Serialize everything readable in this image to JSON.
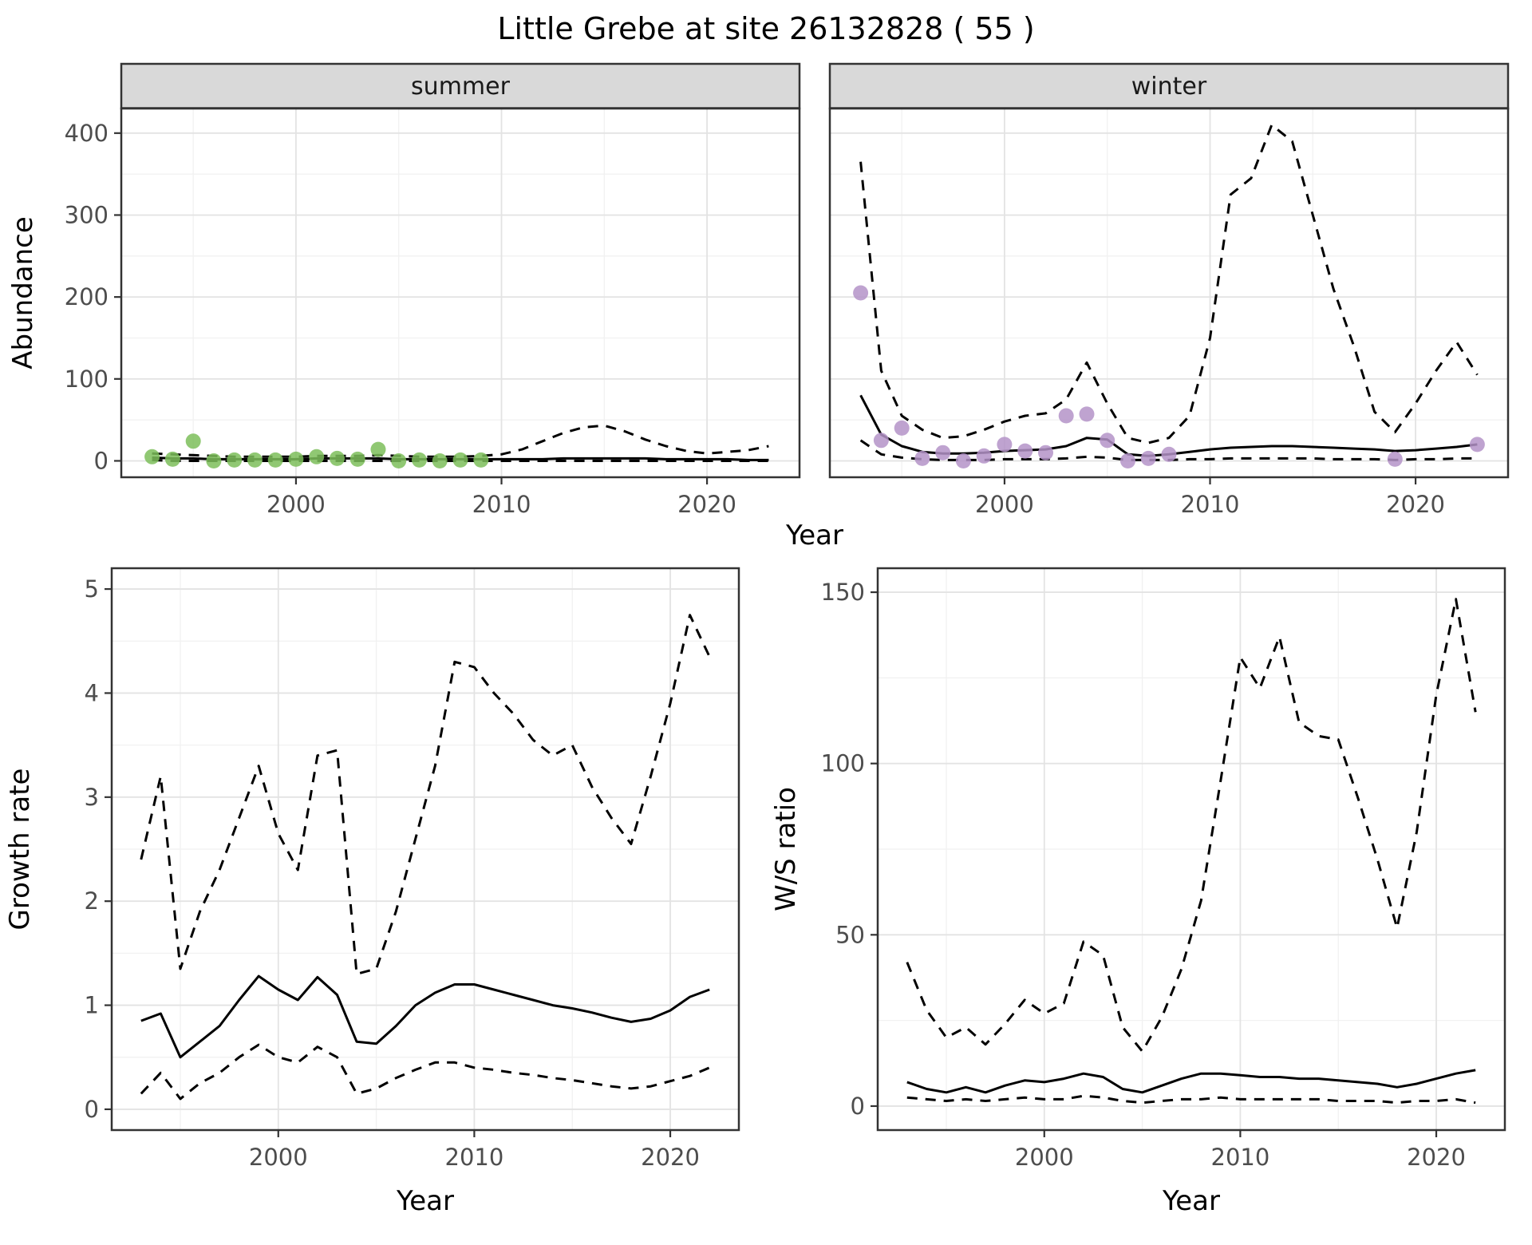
{
  "title": "Little Grebe at site 26132828 ( 55 )",
  "theme": {
    "strip_bg": "#D9D9D9",
    "grid_major": "#E3E3E3",
    "grid_minor": "#F1F1F1",
    "border": "#333333",
    "tick_color": "#4D4D4D",
    "line_color": "#000000",
    "summer_point_color": "#7CBE5B",
    "winter_point_color": "#B493C8"
  },
  "chart_data": [
    {
      "id": "abundance",
      "type": "line",
      "title": "",
      "xlabel": "Year",
      "ylabel": "Abundance",
      "xlim": [
        1991.5,
        2024.5
      ],
      "ylim": [
        -20,
        430
      ],
      "xticks": [
        2000,
        2010,
        2020
      ],
      "xminor": [
        1995,
        2005,
        2015
      ],
      "yticks": [
        0,
        100,
        200,
        300,
        400
      ],
      "yminor": [
        50,
        150,
        250,
        350
      ],
      "grid": true,
      "legend": "none",
      "facets": [
        {
          "label": "summer",
          "point_color": "#7CBE5B",
          "points": {
            "x": [
              1993,
              1994,
              1995,
              1996,
              1997,
              1998,
              1999,
              2000,
              2001,
              2002,
              2003,
              2004,
              2005,
              2006,
              2007,
              2008,
              2009
            ],
            "y": [
              5,
              2,
              24,
              0,
              1,
              1,
              1,
              2,
              5,
              3,
              2,
              14,
              0,
              1,
              0,
              1,
              1
            ]
          },
          "series": [
            {
              "name": "fit",
              "style": "solid",
              "x": [
                1993,
                1994,
                1995,
                1996,
                1997,
                1998,
                1999,
                2000,
                2001,
                2002,
                2003,
                2004,
                2005,
                2006,
                2007,
                2008,
                2009,
                2010,
                2011,
                2012,
                2013,
                2014,
                2015,
                2016,
                2017,
                2018,
                2019,
                2020,
                2021,
                2022,
                2023
              ],
              "y": [
                4,
                3,
                3,
                2,
                2,
                2,
                2,
                2,
                3,
                3,
                3,
                3,
                2,
                2,
                2,
                2,
                2,
                2,
                2,
                2,
                3,
                3,
                3,
                3,
                3,
                2,
                2,
                2,
                2,
                1,
                1
              ]
            },
            {
              "name": "upper-ci",
              "style": "dashed",
              "x": [
                1993,
                1994,
                1995,
                1996,
                1997,
                1998,
                1999,
                2000,
                2001,
                2002,
                2003,
                2004,
                2005,
                2006,
                2007,
                2008,
                2009,
                2010,
                2011,
                2012,
                2013,
                2014,
                2015,
                2016,
                2017,
                2018,
                2019,
                2020,
                2021,
                2022,
                2023
              ],
              "y": [
                9,
                8,
                7,
                6,
                5,
                5,
                5,
                5,
                6,
                6,
                6,
                7,
                6,
                5,
                5,
                5,
                6,
                8,
                14,
                24,
                34,
                41,
                43,
                36,
                26,
                18,
                12,
                9,
                11,
                13,
                18
              ]
            },
            {
              "name": "lower-ci",
              "style": "dashed",
              "x": [
                1993,
                1994,
                1995,
                1996,
                1997,
                1998,
                1999,
                2000,
                2001,
                2002,
                2003,
                2004,
                2005,
                2006,
                2007,
                2008,
                2009,
                2010,
                2011,
                2012,
                2013,
                2014,
                2015,
                2016,
                2017,
                2018,
                2019,
                2020,
                2021,
                2022,
                2023
              ],
              "y": [
                1,
                0,
                0,
                0,
                0,
                0,
                0,
                0,
                0,
                0,
                0,
                0,
                0,
                0,
                0,
                0,
                0,
                0,
                0,
                0,
                0,
                0,
                0,
                0,
                0,
                0,
                0,
                0,
                0,
                0,
                0
              ]
            }
          ]
        },
        {
          "label": "winter",
          "point_color": "#B493C8",
          "points": {
            "x": [
              1993,
              1994,
              1995,
              1996,
              1997,
              1998,
              1999,
              2000,
              2001,
              2002,
              2003,
              2004,
              2005,
              2006,
              2007,
              2008,
              2019,
              2023
            ],
            "y": [
              205,
              25,
              40,
              3,
              10,
              0,
              6,
              20,
              12,
              10,
              55,
              57,
              25,
              0,
              3,
              8,
              2,
              20
            ]
          },
          "series": [
            {
              "name": "fit",
              "style": "solid",
              "x": [
                1993,
                1994,
                1995,
                1996,
                1997,
                1998,
                1999,
                2000,
                2001,
                2002,
                2003,
                2004,
                2005,
                2006,
                2007,
                2008,
                2009,
                2010,
                2011,
                2012,
                2013,
                2014,
                2015,
                2016,
                2017,
                2018,
                2019,
                2020,
                2021,
                2022,
                2023
              ],
              "y": [
                80,
                32,
                18,
                11,
                9,
                9,
                10,
                12,
                13,
                14,
                18,
                28,
                26,
                8,
                6,
                8,
                11,
                14,
                16,
                17,
                18,
                18,
                17,
                16,
                15,
                14,
                12,
                13,
                15,
                17,
                20
              ]
            },
            {
              "name": "upper-ci",
              "style": "dashed",
              "x": [
                1993,
                1994,
                1995,
                1996,
                1997,
                1998,
                1999,
                2000,
                2001,
                2002,
                2003,
                2004,
                2005,
                2006,
                2007,
                2008,
                2009,
                2010,
                2011,
                2012,
                2013,
                2014,
                2015,
                2016,
                2017,
                2018,
                2019,
                2020,
                2021,
                2022,
                2023
              ],
              "y": [
                365,
                110,
                55,
                38,
                28,
                30,
                38,
                48,
                55,
                58,
                75,
                120,
                70,
                28,
                22,
                28,
                55,
                150,
                325,
                345,
                410,
                390,
                300,
                210,
                140,
                60,
                35,
                70,
                110,
                145,
                105
              ]
            },
            {
              "name": "lower-ci",
              "style": "dashed",
              "x": [
                1993,
                1994,
                1995,
                1996,
                1997,
                1998,
                1999,
                2000,
                2001,
                2002,
                2003,
                2004,
                2005,
                2006,
                2007,
                2008,
                2009,
                2010,
                2011,
                2012,
                2013,
                2014,
                2015,
                2016,
                2017,
                2018,
                2019,
                2020,
                2021,
                2022,
                2023
              ],
              "y": [
                25,
                8,
                4,
                2,
                1,
                1,
                1,
                2,
                2,
                2,
                3,
                5,
                4,
                1,
                1,
                1,
                2,
                2,
                3,
                3,
                3,
                3,
                3,
                2,
                2,
                2,
                1,
                2,
                2,
                3,
                3
              ]
            }
          ]
        }
      ]
    },
    {
      "id": "growth-rate",
      "type": "line",
      "title": "",
      "xlabel": "Year",
      "ylabel": "Growth rate",
      "xlim": [
        1991.5,
        2023.5
      ],
      "ylim": [
        -0.2,
        5.2
      ],
      "xticks": [
        2000,
        2010,
        2020
      ],
      "xminor": [
        1995,
        2005,
        2015
      ],
      "yticks": [
        0,
        1,
        2,
        3,
        4,
        5
      ],
      "yminor": [
        0.5,
        1.5,
        2.5,
        3.5,
        4.5
      ],
      "grid": true,
      "legend": "none",
      "series": [
        {
          "name": "fit",
          "style": "solid",
          "x": [
            1993,
            1994,
            1995,
            1996,
            1997,
            1998,
            1999,
            2000,
            2001,
            2002,
            2003,
            2004,
            2005,
            2006,
            2007,
            2008,
            2009,
            2010,
            2011,
            2012,
            2013,
            2014,
            2015,
            2016,
            2017,
            2018,
            2019,
            2020,
            2021,
            2022
          ],
          "y": [
            0.85,
            0.92,
            0.5,
            0.65,
            0.8,
            1.05,
            1.28,
            1.15,
            1.05,
            1.27,
            1.1,
            0.65,
            0.63,
            0.8,
            1.0,
            1.12,
            1.2,
            1.2,
            1.15,
            1.1,
            1.05,
            1.0,
            0.97,
            0.93,
            0.88,
            0.84,
            0.87,
            0.95,
            1.08,
            1.15
          ]
        },
        {
          "name": "upper-ci",
          "style": "dashed",
          "x": [
            1993,
            1994,
            1995,
            1996,
            1997,
            1998,
            1999,
            2000,
            2001,
            2002,
            2003,
            2004,
            2005,
            2006,
            2007,
            2008,
            2009,
            2010,
            2011,
            2012,
            2013,
            2014,
            2015,
            2016,
            2017,
            2018,
            2019,
            2020,
            2021,
            2022
          ],
          "y": [
            2.4,
            3.2,
            1.35,
            1.9,
            2.3,
            2.8,
            3.3,
            2.65,
            2.3,
            3.4,
            3.45,
            1.3,
            1.35,
            1.9,
            2.6,
            3.3,
            4.3,
            4.25,
            4.0,
            3.8,
            3.55,
            3.4,
            3.5,
            3.1,
            2.8,
            2.55,
            3.2,
            3.9,
            4.75,
            4.35
          ]
        },
        {
          "name": "lower-ci",
          "style": "dashed",
          "x": [
            1993,
            1994,
            1995,
            1996,
            1997,
            1998,
            1999,
            2000,
            2001,
            2002,
            2003,
            2004,
            2005,
            2006,
            2007,
            2008,
            2009,
            2010,
            2011,
            2012,
            2013,
            2014,
            2015,
            2016,
            2017,
            2018,
            2019,
            2020,
            2021,
            2022
          ],
          "y": [
            0.15,
            0.35,
            0.1,
            0.25,
            0.35,
            0.5,
            0.62,
            0.5,
            0.45,
            0.6,
            0.5,
            0.15,
            0.2,
            0.3,
            0.38,
            0.45,
            0.45,
            0.4,
            0.38,
            0.35,
            0.33,
            0.3,
            0.28,
            0.25,
            0.22,
            0.2,
            0.22,
            0.27,
            0.32,
            0.4
          ]
        }
      ]
    },
    {
      "id": "ws-ratio",
      "type": "line",
      "title": "",
      "xlabel": "Year",
      "ylabel": "W/S ratio",
      "xlim": [
        1991.5,
        2023.5
      ],
      "ylim": [
        -7,
        157
      ],
      "xticks": [
        2000,
        2010,
        2020
      ],
      "xminor": [
        1995,
        2005,
        2015
      ],
      "yticks": [
        0,
        50,
        100,
        150
      ],
      "yminor": [
        25,
        75,
        125
      ],
      "grid": true,
      "legend": "none",
      "series": [
        {
          "name": "fit",
          "style": "solid",
          "x": [
            1993,
            1994,
            1995,
            1996,
            1997,
            1998,
            1999,
            2000,
            2001,
            2002,
            2003,
            2004,
            2005,
            2006,
            2007,
            2008,
            2009,
            2010,
            2011,
            2012,
            2013,
            2014,
            2015,
            2016,
            2017,
            2018,
            2019,
            2020,
            2021,
            2022
          ],
          "y": [
            7,
            5,
            4,
            5.5,
            4,
            6,
            7.5,
            7,
            8,
            9.5,
            8.5,
            5,
            4,
            6,
            8,
            9.5,
            9.5,
            9,
            8.5,
            8.5,
            8,
            8,
            7.5,
            7,
            6.5,
            5.5,
            6.5,
            8,
            9.5,
            10.5
          ]
        },
        {
          "name": "upper-ci",
          "style": "dashed",
          "x": [
            1993,
            1994,
            1995,
            1996,
            1997,
            1998,
            1999,
            2000,
            2001,
            2002,
            2003,
            2004,
            2005,
            2006,
            2007,
            2008,
            2009,
            2010,
            2011,
            2012,
            2013,
            2014,
            2015,
            2016,
            2017,
            2018,
            2019,
            2020,
            2021,
            2022
          ],
          "y": [
            42,
            28,
            20,
            23,
            18,
            24,
            31,
            27,
            30,
            48,
            44,
            23,
            16,
            26,
            40,
            60,
            95,
            131,
            122,
            137,
            112,
            108,
            107,
            90,
            72,
            52,
            80,
            120,
            148,
            115
          ]
        },
        {
          "name": "lower-ci",
          "style": "dashed",
          "x": [
            1993,
            1994,
            1995,
            1996,
            1997,
            1998,
            1999,
            2000,
            2001,
            2002,
            2003,
            2004,
            2005,
            2006,
            2007,
            2008,
            2009,
            2010,
            2011,
            2012,
            2013,
            2014,
            2015,
            2016,
            2017,
            2018,
            2019,
            2020,
            2021,
            2022
          ],
          "y": [
            2.5,
            2,
            1.5,
            2,
            1.5,
            2,
            2.5,
            2,
            2,
            3,
            2.5,
            1.5,
            1,
            1.5,
            2,
            2,
            2.5,
            2,
            2,
            2,
            2,
            2,
            1.5,
            1.5,
            1.5,
            1,
            1.5,
            1.5,
            2,
            1
          ]
        }
      ]
    }
  ]
}
